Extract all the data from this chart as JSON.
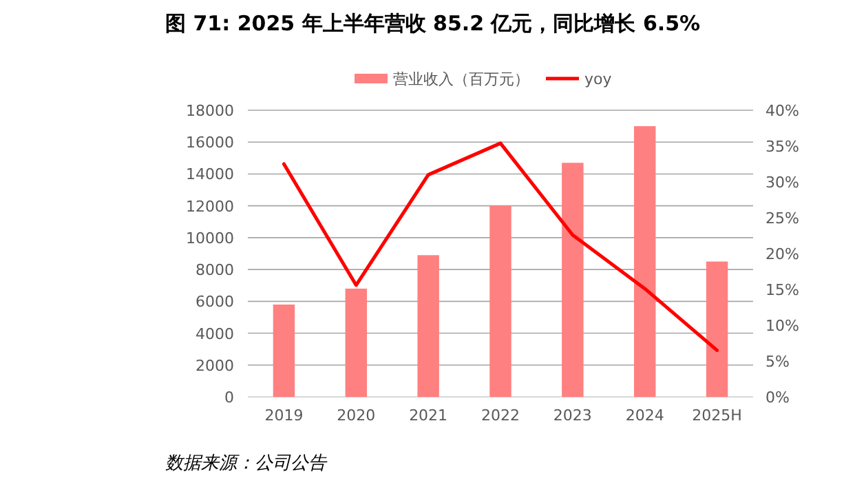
{
  "chart_data": {
    "type": "bar",
    "title": "图 71: 2025 年上半年营收 85.2 亿元，同比增长 6.5%",
    "categories": [
      "2019",
      "2020",
      "2021",
      "2022",
      "2023",
      "2024",
      "2025H"
    ],
    "series": [
      {
        "name": "营业收入（百万元）",
        "color": "#ff8080",
        "values": [
          5800,
          6800,
          8900,
          12000,
          14700,
          17000,
          8500
        ]
      },
      {
        "name": "yoy",
        "type": "line",
        "axis": "y2",
        "color": "#ff0000",
        "values": [
          32.5,
          15.6,
          31.0,
          35.4,
          22.6,
          15.1,
          6.5
        ]
      }
    ],
    "ylim": [
      0,
      18000
    ],
    "yticks": [
      0,
      2000,
      4000,
      6000,
      8000,
      10000,
      12000,
      14000,
      16000,
      18000
    ],
    "y2lim": [
      0,
      40
    ],
    "y2ticks": [
      {
        "value": 0,
        "label": "0%"
      },
      {
        "value": 5,
        "label": "5%"
      },
      {
        "value": 10,
        "label": "10%"
      },
      {
        "value": 15,
        "label": "15%"
      },
      {
        "value": 20,
        "label": "20%"
      },
      {
        "value": 25,
        "label": "25%"
      },
      {
        "value": 30,
        "label": "30%"
      },
      {
        "value": 35,
        "label": "35%"
      },
      {
        "value": 40,
        "label": "40%"
      }
    ],
    "grid": "y",
    "legend": "top",
    "annotations": [
      "数据来源：公司公告"
    ]
  }
}
